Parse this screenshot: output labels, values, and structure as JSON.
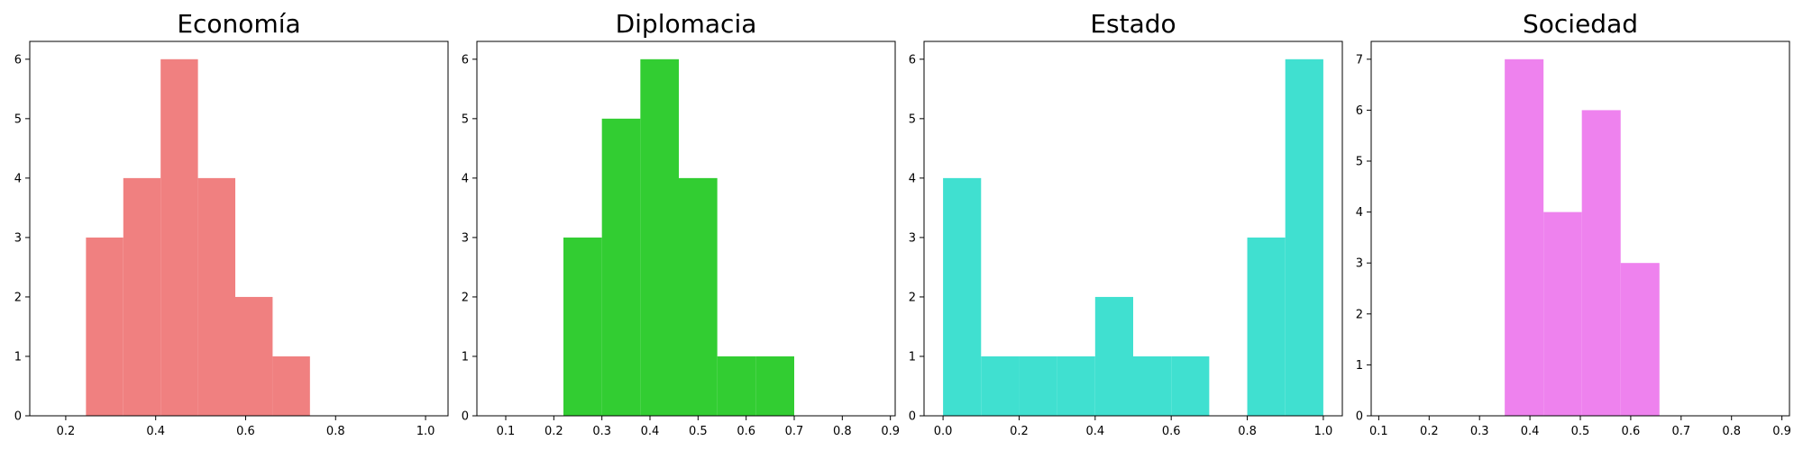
{
  "chart_data": [
    {
      "type": "bar",
      "title": "Economía",
      "xlabel": "",
      "ylabel": "",
      "color": "#f08080",
      "xlim": [
        0.12,
        1.05
      ],
      "ylim": [
        0,
        6.3
      ],
      "xticks": [
        0.2,
        0.4,
        0.6,
        0.8,
        1.0
      ],
      "xtick_labels": [
        "0.2",
        "0.4",
        "0.6",
        "0.8",
        "1.0"
      ],
      "yticks": [
        0,
        1,
        2,
        3,
        4,
        5,
        6
      ],
      "ytick_labels": [
        "0",
        "1",
        "2",
        "3",
        "4",
        "5",
        "6"
      ],
      "bins": [
        {
          "x0": 0.245,
          "x1": 0.328,
          "value": 3
        },
        {
          "x0": 0.328,
          "x1": 0.411,
          "value": 4
        },
        {
          "x0": 0.411,
          "x1": 0.494,
          "value": 6
        },
        {
          "x0": 0.494,
          "x1": 0.577,
          "value": 4
        },
        {
          "x0": 0.577,
          "x1": 0.66,
          "value": 2
        },
        {
          "x0": 0.66,
          "x1": 0.743,
          "value": 1
        }
      ]
    },
    {
      "type": "bar",
      "title": "Diplomacia",
      "xlabel": "",
      "ylabel": "",
      "color": "#32cd32",
      "xlim": [
        0.04,
        0.91
      ],
      "ylim": [
        0,
        6.3
      ],
      "xticks": [
        0.1,
        0.2,
        0.3,
        0.4,
        0.5,
        0.6,
        0.7,
        0.8,
        0.9
      ],
      "xtick_labels": [
        "0.1",
        "0.2",
        "0.3",
        "0.4",
        "0.5",
        "0.6",
        "0.7",
        "0.8",
        "0.9"
      ],
      "yticks": [
        0,
        1,
        2,
        3,
        4,
        5,
        6
      ],
      "ytick_labels": [
        "0",
        "1",
        "2",
        "3",
        "4",
        "5",
        "6"
      ],
      "bins": [
        {
          "x0": 0.22,
          "x1": 0.3,
          "value": 3
        },
        {
          "x0": 0.3,
          "x1": 0.38,
          "value": 5
        },
        {
          "x0": 0.38,
          "x1": 0.46,
          "value": 6
        },
        {
          "x0": 0.46,
          "x1": 0.54,
          "value": 4
        },
        {
          "x0": 0.54,
          "x1": 0.62,
          "value": 1
        },
        {
          "x0": 0.62,
          "x1": 0.7,
          "value": 1
        }
      ]
    },
    {
      "type": "bar",
      "title": "Estado",
      "xlabel": "",
      "ylabel": "",
      "color": "#40e0d0",
      "xlim": [
        -0.05,
        1.05
      ],
      "ylim": [
        0,
        6.3
      ],
      "xticks": [
        0.0,
        0.2,
        0.4,
        0.6,
        0.8,
        1.0
      ],
      "xtick_labels": [
        "0.0",
        "0.2",
        "0.4",
        "0.6",
        "0.8",
        "1.0"
      ],
      "yticks": [
        0,
        1,
        2,
        3,
        4,
        5,
        6
      ],
      "ytick_labels": [
        "0",
        "1",
        "2",
        "3",
        "4",
        "5",
        "6"
      ],
      "bins": [
        {
          "x0": 0.0,
          "x1": 0.1,
          "value": 4
        },
        {
          "x0": 0.1,
          "x1": 0.2,
          "value": 1
        },
        {
          "x0": 0.2,
          "x1": 0.3,
          "value": 1
        },
        {
          "x0": 0.3,
          "x1": 0.4,
          "value": 1
        },
        {
          "x0": 0.4,
          "x1": 0.5,
          "value": 2
        },
        {
          "x0": 0.5,
          "x1": 0.6,
          "value": 1
        },
        {
          "x0": 0.6,
          "x1": 0.7,
          "value": 1
        },
        {
          "x0": 0.7,
          "x1": 0.8,
          "value": 0
        },
        {
          "x0": 0.8,
          "x1": 0.9,
          "value": 3
        },
        {
          "x0": 0.9,
          "x1": 1.0,
          "value": 6
        }
      ]
    },
    {
      "type": "bar",
      "title": "Sociedad",
      "xlabel": "",
      "ylabel": "",
      "color": "#ee82ee",
      "xlim": [
        0.085,
        0.915
      ],
      "ylim": [
        0,
        7.35
      ],
      "xticks": [
        0.1,
        0.2,
        0.3,
        0.4,
        0.5,
        0.6,
        0.7,
        0.8,
        0.9
      ],
      "xtick_labels": [
        "0.1",
        "0.2",
        "0.3",
        "0.4",
        "0.5",
        "0.6",
        "0.7",
        "0.8",
        "0.9"
      ],
      "yticks": [
        0,
        1,
        2,
        3,
        4,
        5,
        6,
        7
      ],
      "ytick_labels": [
        "0",
        "1",
        "2",
        "3",
        "4",
        "5",
        "6",
        "7"
      ],
      "bins": [
        {
          "x0": 0.35,
          "x1": 0.427,
          "value": 7
        },
        {
          "x0": 0.427,
          "x1": 0.503,
          "value": 4
        },
        {
          "x0": 0.503,
          "x1": 0.58,
          "value": 6
        },
        {
          "x0": 0.58,
          "x1": 0.657,
          "value": 3
        }
      ]
    }
  ]
}
